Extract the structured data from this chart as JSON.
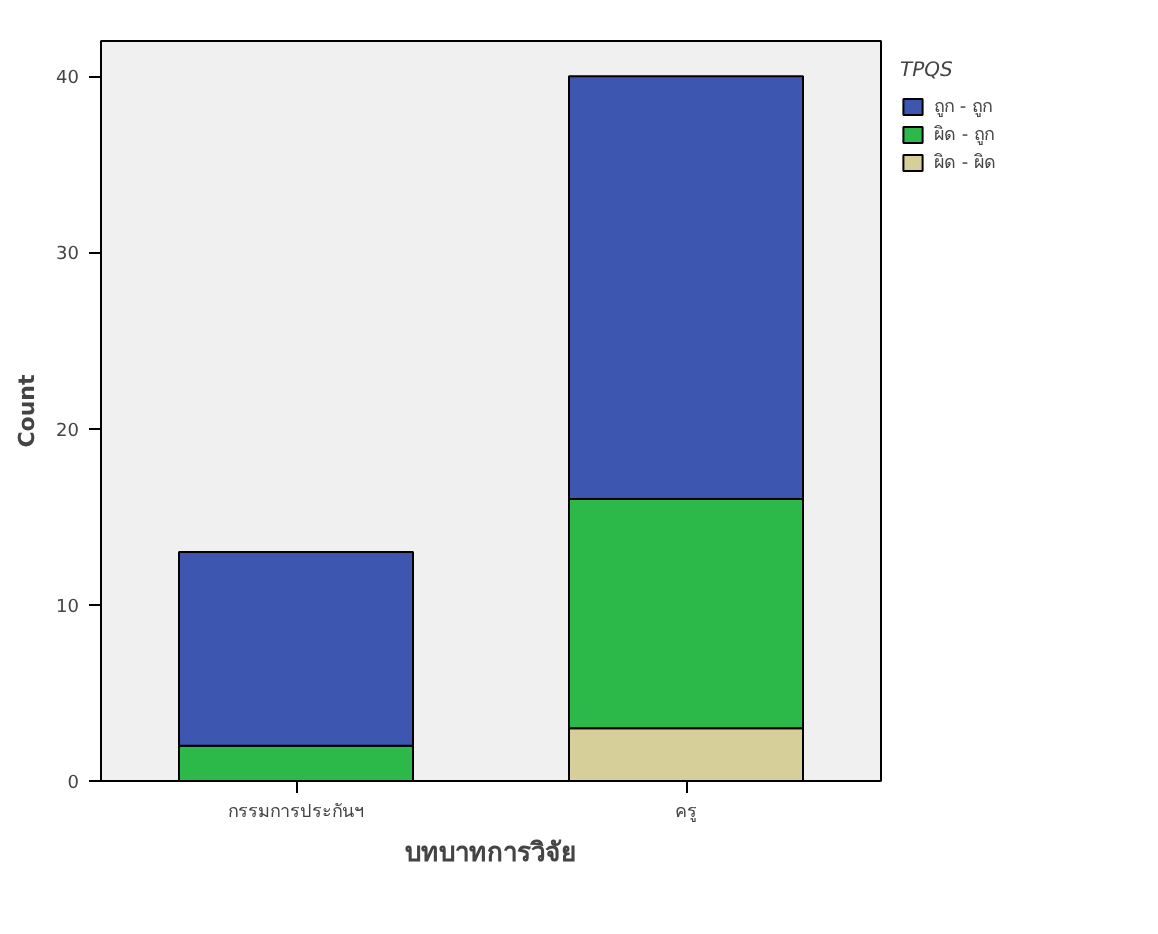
{
  "chart_data": {
    "type": "bar",
    "stacked": true,
    "xlabel": "บทบาทการวิจัย",
    "ylabel": "Count",
    "legend_title": "TPQS",
    "categories": [
      "กรรมการประกันฯ",
      "ครู"
    ],
    "series": [
      {
        "name": "ผิด - ผิด",
        "color": "#d6cf9a",
        "values": [
          0,
          3
        ]
      },
      {
        "name": "ผิด - ถูก",
        "color": "#2db84a",
        "values": [
          2,
          13
        ]
      },
      {
        "name": "ถูก - ถูก",
        "color": "#3d56b0",
        "values": [
          11,
          24
        ]
      }
    ],
    "ylim": [
      0,
      42
    ],
    "yticks": [
      0,
      10,
      20,
      30,
      40
    ],
    "grid": false,
    "legend": "top right"
  }
}
